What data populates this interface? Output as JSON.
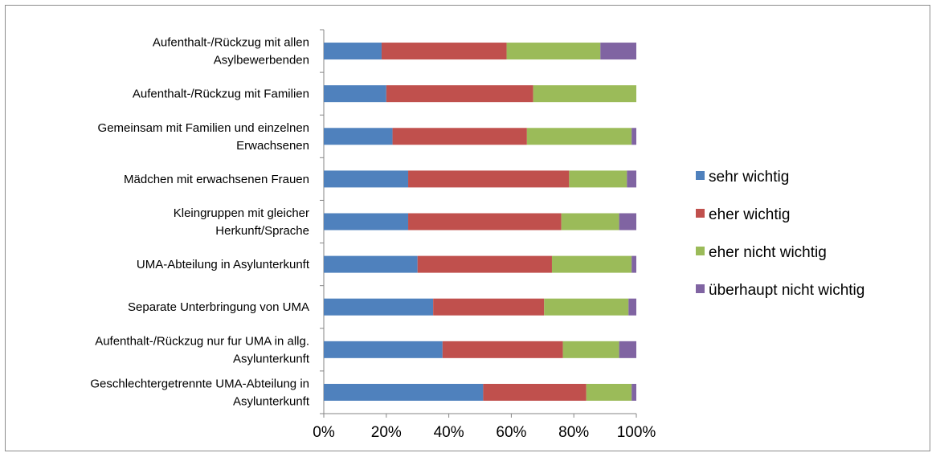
{
  "chart_data": {
    "type": "bar",
    "orientation": "horizontal",
    "stacked": "percent",
    "categories": [
      [
        "Aufenthalt-/Rückzug mit allen",
        "Asylbewerbenden"
      ],
      [
        "Aufenthalt-/Rückzug mit Familien"
      ],
      [
        "Gemeinsam mit Familien und einzelnen",
        "Erwachsenen"
      ],
      [
        "Mädchen mit erwachsenen Frauen"
      ],
      [
        "Kleingruppen mit gleicher",
        "Herkunft/Sprache"
      ],
      [
        "UMA-Abteilung in Asylunterkunft"
      ],
      [
        "Separate Unterbringung von UMA"
      ],
      [
        "Aufenthalt-/Rückzug nur fur UMA in allg.",
        "Asylunterkunft"
      ],
      [
        "Geschlechtergetrennte UMA-Abteilung in",
        "Asylunterkunft"
      ]
    ],
    "series": [
      {
        "name": "sehr wichtig",
        "color": "#4f81bd",
        "values": [
          18.5,
          20,
          22,
          27,
          27,
          30,
          35,
          38,
          51
        ]
      },
      {
        "name": "eher wichtig",
        "color": "#c0504d",
        "values": [
          40,
          47,
          43,
          51.5,
          49,
          43,
          35.5,
          38.5,
          33
        ]
      },
      {
        "name": "eher nicht wichtig",
        "color": "#9bbb59",
        "values": [
          30,
          33,
          33.5,
          18.5,
          18.5,
          25.5,
          27,
          18,
          14.5
        ]
      },
      {
        "name": "überhaupt nicht wichtig",
        "color": "#8064a2",
        "values": [
          11.5,
          0,
          1.5,
          3,
          5.5,
          1.5,
          2.5,
          5.5,
          1.5
        ]
      }
    ],
    "xlim": [
      0,
      100
    ],
    "x_ticks": [
      "0%",
      "20%",
      "40%",
      "60%",
      "80%",
      "100%"
    ],
    "grid": false,
    "legend_position": "right"
  }
}
